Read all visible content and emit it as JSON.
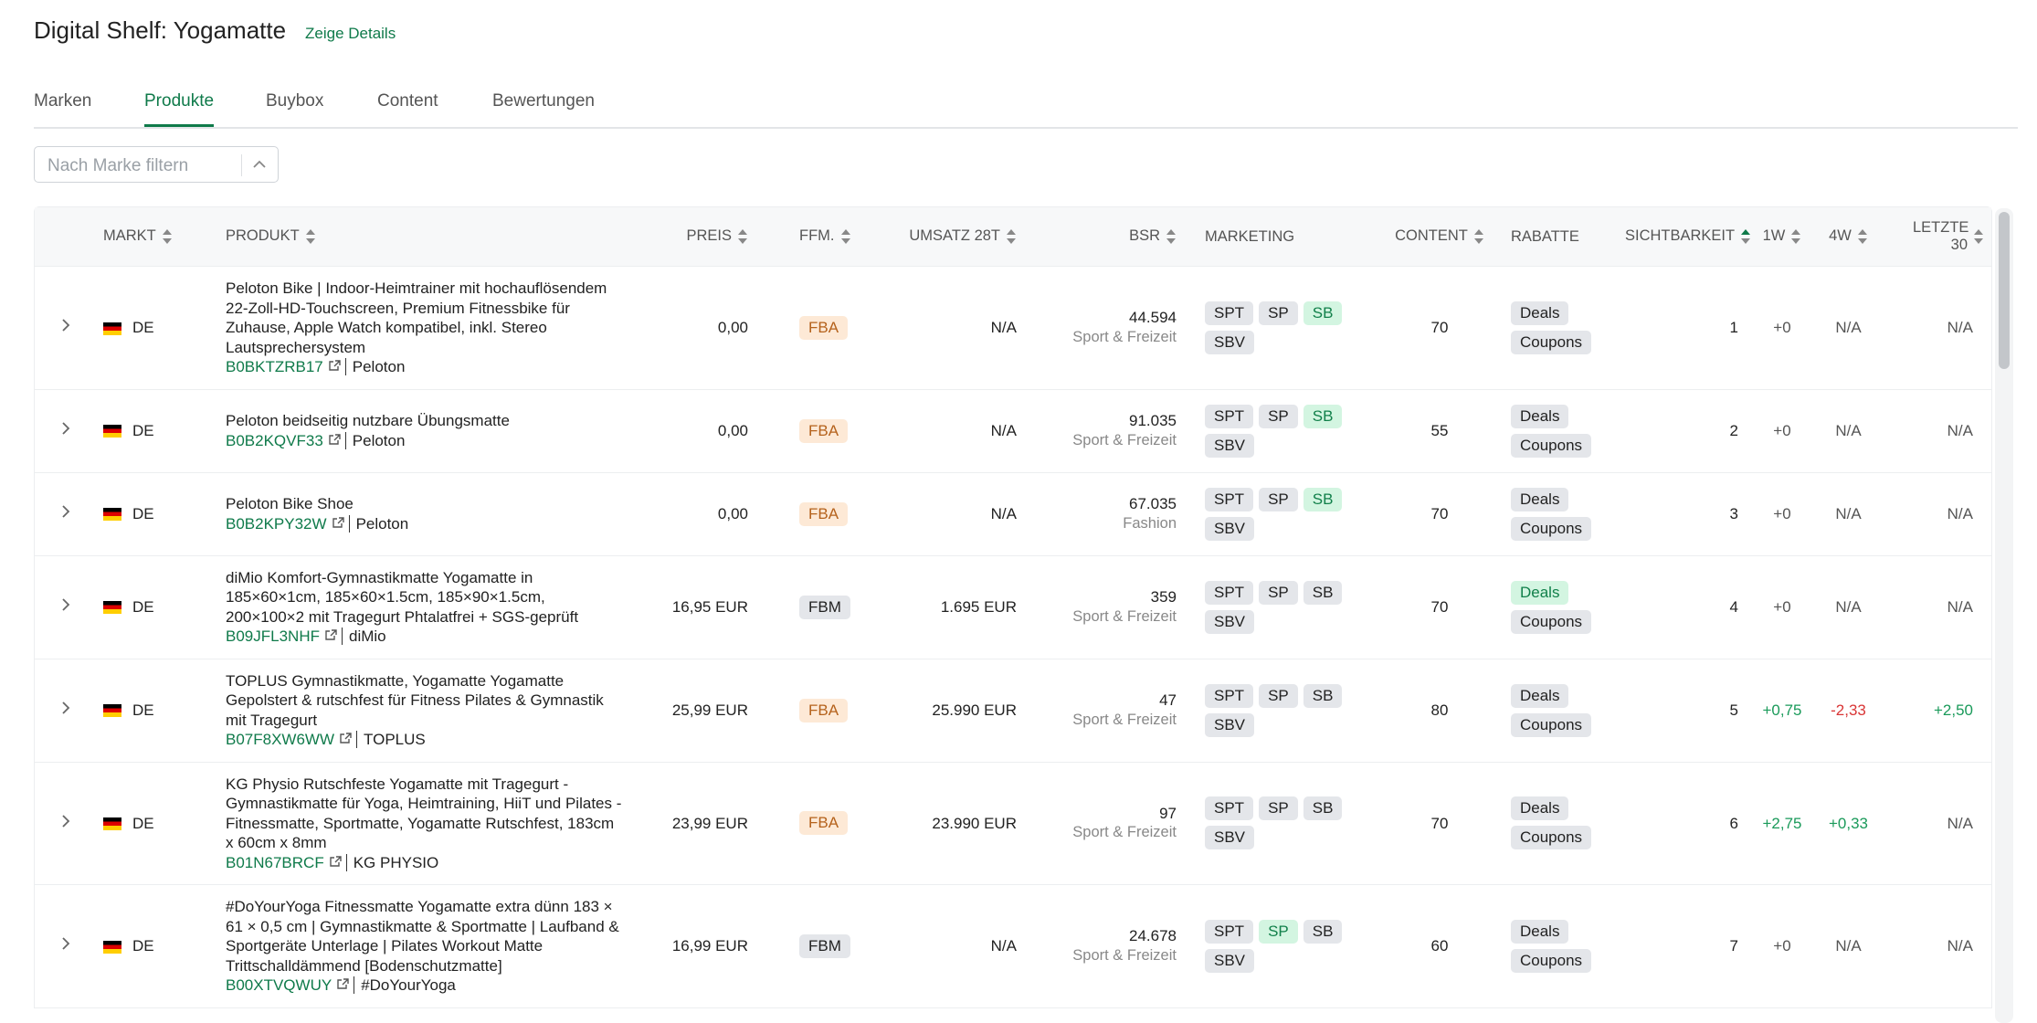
{
  "header": {
    "title": "Digital Shelf: Yogamatte",
    "link": "Zeige Details"
  },
  "tabs": {
    "items": [
      "Marken",
      "Produkte",
      "Buybox",
      "Content",
      "Bewertungen"
    ],
    "active": 1
  },
  "filter": {
    "placeholder": "Nach Marke filtern"
  },
  "table": {
    "columns": [
      {
        "label": "MARKT",
        "sortable": true
      },
      {
        "label": "PRODUKT",
        "sortable": true
      },
      {
        "label": "PREIS",
        "sortable": true
      },
      {
        "label": "FFM.",
        "sortable": true
      },
      {
        "label": "UMSATZ 28T",
        "sortable": true
      },
      {
        "label": "BSR",
        "sortable": true
      },
      {
        "label": "MARKETING",
        "sortable": false
      },
      {
        "label": "CONTENT",
        "sortable": true
      },
      {
        "label": "RABATTE",
        "sortable": false
      },
      {
        "label": "SICHTBARKEIT",
        "sortable": true,
        "sorted": "asc"
      },
      {
        "label": "1W",
        "sortable": true
      },
      {
        "label": "4W",
        "sortable": true
      },
      {
        "label": "LETZTE 30",
        "sortable": true
      }
    ],
    "rows": [
      {
        "market": "DE",
        "title": "Peloton Bike | Indoor-Heimtrainer mit hochauflösendem 22-Zoll-HD-Touchscreen, Premium Fitnessbike für Zuhause, Apple Watch kompatibel, inkl. Stereo Lautsprechersystem",
        "asin": "B0BKTZRB17",
        "brand": "Peloton",
        "price": "0,00",
        "ffm": "FBA",
        "revenue": "N/A",
        "bsr": "44.594",
        "bsr_category": "Sport & Freizeit",
        "marketing": [
          {
            "label": "SPT",
            "active": false
          },
          {
            "label": "SP",
            "active": false
          },
          {
            "label": "SB",
            "active": true
          },
          {
            "label": "SBV",
            "active": false
          }
        ],
        "content": 70,
        "discounts": [
          {
            "label": "Deals",
            "active": false
          },
          {
            "label": "Coupons",
            "active": false
          }
        ],
        "visibility": 1,
        "w1": "+0",
        "w4": "N/A",
        "last30": "N/A"
      },
      {
        "market": "DE",
        "title": "Peloton beidseitig nutzbare Übungsmatte",
        "asin": "B0B2KQVF33",
        "brand": "Peloton",
        "price": "0,00",
        "ffm": "FBA",
        "revenue": "N/A",
        "bsr": "91.035",
        "bsr_category": "Sport & Freizeit",
        "marketing": [
          {
            "label": "SPT",
            "active": false
          },
          {
            "label": "SP",
            "active": false
          },
          {
            "label": "SB",
            "active": true
          },
          {
            "label": "SBV",
            "active": false
          }
        ],
        "content": 55,
        "discounts": [
          {
            "label": "Deals",
            "active": false
          },
          {
            "label": "Coupons",
            "active": false
          }
        ],
        "visibility": 2,
        "w1": "+0",
        "w4": "N/A",
        "last30": "N/A"
      },
      {
        "market": "DE",
        "title": "Peloton Bike Shoe",
        "asin": "B0B2KPY32W",
        "brand": "Peloton",
        "price": "0,00",
        "ffm": "FBA",
        "revenue": "N/A",
        "bsr": "67.035",
        "bsr_category": "Fashion",
        "marketing": [
          {
            "label": "SPT",
            "active": false
          },
          {
            "label": "SP",
            "active": false
          },
          {
            "label": "SB",
            "active": true
          },
          {
            "label": "SBV",
            "active": false
          }
        ],
        "content": 70,
        "discounts": [
          {
            "label": "Deals",
            "active": false
          },
          {
            "label": "Coupons",
            "active": false
          }
        ],
        "visibility": 3,
        "w1": "+0",
        "w4": "N/A",
        "last30": "N/A"
      },
      {
        "market": "DE",
        "title": "diMio Komfort-Gymnastikmatte Yogamatte in 185×60×1cm, 185×60×1.5cm, 185×90×1.5cm, 200×100×2 mit Tragegurt Phtalatfrei + SGS-geprüft",
        "asin": "B09JFL3NHF",
        "brand": "diMio",
        "price": "16,95 EUR",
        "ffm": "FBM",
        "revenue": "1.695 EUR",
        "bsr": "359",
        "bsr_category": "Sport & Freizeit",
        "marketing": [
          {
            "label": "SPT",
            "active": false
          },
          {
            "label": "SP",
            "active": false
          },
          {
            "label": "SB",
            "active": false
          },
          {
            "label": "SBV",
            "active": false
          }
        ],
        "content": 70,
        "discounts": [
          {
            "label": "Deals",
            "active": true
          },
          {
            "label": "Coupons",
            "active": false
          }
        ],
        "visibility": 4,
        "w1": "+0",
        "w4": "N/A",
        "last30": "N/A"
      },
      {
        "market": "DE",
        "title": "TOPLUS Gymnastikmatte, Yogamatte Yogamatte Gepolstert & rutschfest für Fitness Pilates & Gymnastik mit Tragegurt",
        "asin": "B07F8XW6WW",
        "brand": "TOPLUS",
        "price": "25,99 EUR",
        "ffm": "FBA",
        "revenue": "25.990 EUR",
        "bsr": "47",
        "bsr_category": "Sport & Freizeit",
        "marketing": [
          {
            "label": "SPT",
            "active": false
          },
          {
            "label": "SP",
            "active": false
          },
          {
            "label": "SB",
            "active": false
          },
          {
            "label": "SBV",
            "active": false
          }
        ],
        "content": 80,
        "discounts": [
          {
            "label": "Deals",
            "active": false
          },
          {
            "label": "Coupons",
            "active": false
          }
        ],
        "visibility": 5,
        "w1": "+0,75",
        "w4": "-2,33",
        "last30": "+2,50"
      },
      {
        "market": "DE",
        "title": "KG Physio Rutschfeste Yogamatte mit Tragegurt - Gymnastikmatte für Yoga, Heimtraining, HiiT und Pilates - Fitnessmatte, Sportmatte, Yogamatte Rutschfest, 183cm x 60cm x 8mm",
        "asin": "B01N67BRCF",
        "brand": "KG PHYSIO",
        "price": "23,99 EUR",
        "ffm": "FBA",
        "revenue": "23.990 EUR",
        "bsr": "97",
        "bsr_category": "Sport & Freizeit",
        "marketing": [
          {
            "label": "SPT",
            "active": false
          },
          {
            "label": "SP",
            "active": false
          },
          {
            "label": "SB",
            "active": false
          },
          {
            "label": "SBV",
            "active": false
          }
        ],
        "content": 70,
        "discounts": [
          {
            "label": "Deals",
            "active": false
          },
          {
            "label": "Coupons",
            "active": false
          }
        ],
        "visibility": 6,
        "w1": "+2,75",
        "w4": "+0,33",
        "last30": "N/A"
      },
      {
        "market": "DE",
        "title": "#DoYourYoga Fitnessmatte Yogamatte extra dünn 183 × 61 × 0,5 cm | Gymnastikmatte & Sportmatte | Laufband & Sportgeräte Unterlage | Pilates Workout Matte Trittschalldämmend [Bodenschutzmatte]",
        "asin": "B00XTVQWUY",
        "brand": "#DoYourYoga",
        "price": "16,99 EUR",
        "ffm": "FBM",
        "revenue": "N/A",
        "bsr": "24.678",
        "bsr_category": "Sport & Freizeit",
        "marketing": [
          {
            "label": "SPT",
            "active": false
          },
          {
            "label": "SP",
            "active": true
          },
          {
            "label": "SB",
            "active": false
          },
          {
            "label": "SBV",
            "active": false
          }
        ],
        "content": 60,
        "discounts": [
          {
            "label": "Deals",
            "active": false
          },
          {
            "label": "Coupons",
            "active": false
          }
        ],
        "visibility": 7,
        "w1": "+0",
        "w4": "N/A",
        "last30": "N/A"
      }
    ]
  }
}
